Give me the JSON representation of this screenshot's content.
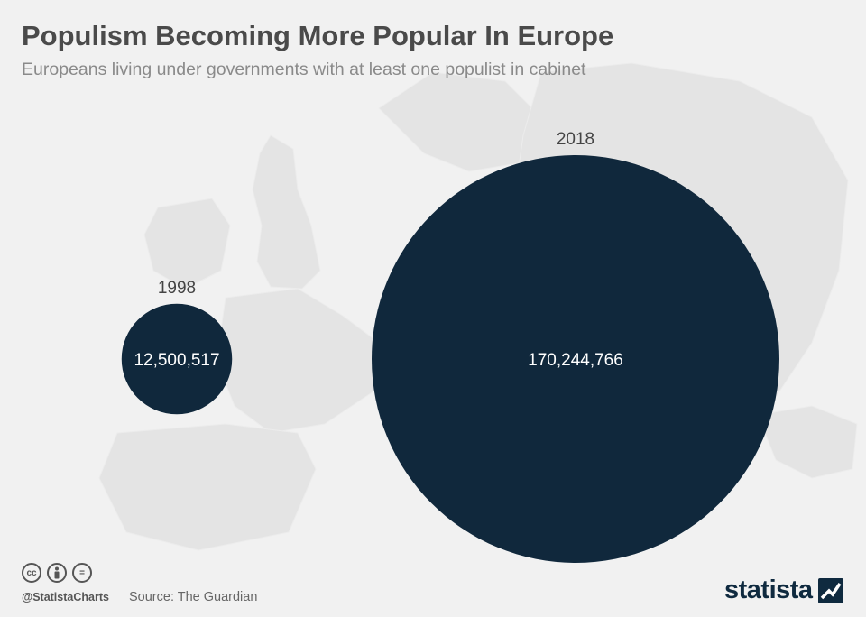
{
  "header": {
    "title": "Populism Becoming More Popular In Europe",
    "subtitle": "Europeans living under governments with at least one populist in cabinet"
  },
  "colors": {
    "bubble": "#10283c",
    "bubble_text": "#ffffff",
    "year_label": "#444444",
    "background": "#f1f1f1",
    "map": "#e3e3e3"
  },
  "chart_data": {
    "type": "bubble",
    "x_label": "",
    "y_label": "",
    "categories": [
      "1998",
      "2018"
    ],
    "series": [
      {
        "values": [
          12500517,
          170244766
        ],
        "value_labels": [
          "12,500,517",
          "170,244,766"
        ]
      }
    ],
    "legend": "none",
    "grid": false
  },
  "footer": {
    "cc_icons": [
      "cc",
      "by",
      "="
    ],
    "handle": "@StatistaCharts",
    "source": "Source: The Guardian",
    "brand": "statista"
  }
}
